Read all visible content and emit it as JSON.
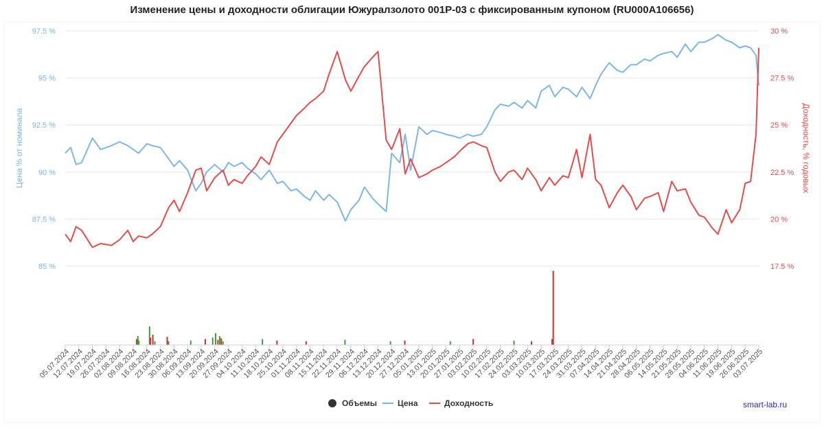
{
  "chart_data": {
    "type": "line",
    "title": "Изменение цены и доходности облигации Южуралзолото 001Р-03 с фиксированным купоном (RU000A106656)",
    "credit": "smart-lab.ru",
    "y_left_label": "Цена % от номинала",
    "y_right_label": "Доходность, % годовых",
    "y_left_ticks": [
      "85 %",
      "87.5 %",
      "90 %",
      "92.5 %",
      "95 %",
      "97.5 %"
    ],
    "y_right_ticks": [
      "17.5 %",
      "20 %",
      "22.5 %",
      "25 %",
      "27.5 %",
      "30 %"
    ],
    "ylim_left": [
      85,
      97.5
    ],
    "ylim_right": [
      17.5,
      30
    ],
    "x_tick_labels": [
      "05.07.2024",
      "12.07.2024",
      "19.07.2024",
      "26.07.2024",
      "02.08.2024",
      "09.08.2024",
      "16.08.2024",
      "23.08.2024",
      "30.08.2024",
      "06.09.2024",
      "13.09.2024",
      "20.09.2024",
      "27.09.2024",
      "04.10.2024",
      "11.10.2024",
      "18.10.2024",
      "25.10.2024",
      "01.11.2024",
      "08.11.2024",
      "15.11.2024",
      "22.11.2024",
      "29.11.2024",
      "06.12.2024",
      "13.12.2024",
      "20.12.2024",
      "27.12.2024",
      "05.01.2025",
      "13.01.2025",
      "20.01.2025",
      "27.01.2025",
      "03.02.2025",
      "10.02.2025",
      "17.02.2025",
      "24.02.2025",
      "03.03.2025",
      "10.03.2025",
      "17.03.2025",
      "24.03.2025",
      "31.03.2025",
      "07.04.2025",
      "14.04.2025",
      "21.04.2025",
      "28.04.2025",
      "06.05.2025",
      "14.05.2025",
      "21.05.2025",
      "28.05.2025",
      "04.06.2025",
      "11.06.2025",
      "19.06.2025",
      "26.06.2025",
      "03.07.2025"
    ],
    "legend": [
      {
        "name": "Объемы",
        "color": "#333333",
        "symbol": "circle"
      },
      {
        "name": "Цена",
        "color": "#7cb5ec",
        "symbol": "line"
      },
      {
        "name": "Доходность",
        "color": "#e84a4a",
        "symbol": "line"
      }
    ],
    "colors": {
      "price": "#7cb5ec",
      "yield": "#e84a4a",
      "volume_up": "#3aa03a",
      "volume_down": "#d62c2c",
      "grid": "#e6e6e6",
      "left_axis": "#7cb5ec",
      "right_axis": "#e84a4a"
    },
    "series": [
      {
        "name": "Цена",
        "axis": "left",
        "x": [
          0,
          0.4,
          0.8,
          1.2,
          2,
          2.6,
          3.4,
          4,
          4.6,
          5,
          5.4,
          6,
          6.4,
          7,
          7.6,
          8,
          8.4,
          9,
          9.6,
          10,
          10.4,
          11,
          11.6,
          12,
          12.4,
          13,
          13.4,
          14,
          14.4,
          15,
          15.6,
          16,
          16.6,
          17,
          17.6,
          18,
          18.4,
          19,
          19.4,
          20,
          20.6,
          21,
          21.6,
          22,
          22.6,
          23,
          23.6,
          24,
          24.6,
          25,
          25.4,
          26,
          26.6,
          27,
          27.6,
          28,
          28.6,
          29,
          29.6,
          30,
          30.6,
          31,
          31.6,
          32,
          32.6,
          33,
          33.6,
          34,
          34.6,
          35,
          35.6,
          36,
          36.6,
          37,
          37.6,
          38,
          38.6,
          39,
          39.4,
          40,
          40.6,
          41,
          41.6,
          42,
          42.6,
          43,
          43.6,
          44,
          44.6,
          45,
          45.6,
          46,
          46.6,
          47,
          47.6,
          48,
          48.6,
          49,
          49.6,
          50,
          50.4,
          50.8,
          51
        ],
        "values": [
          91.0,
          91.3,
          90.4,
          90.5,
          91.8,
          91.2,
          91.4,
          91.6,
          91.4,
          91.2,
          91.0,
          91.5,
          91.4,
          91.3,
          90.7,
          90.3,
          90.6,
          90.1,
          89.0,
          89.4,
          90.0,
          90.4,
          90.0,
          90.5,
          90.3,
          90.5,
          90.2,
          89.9,
          89.6,
          90.1,
          89.4,
          89.5,
          89.0,
          89.1,
          88.7,
          88.5,
          89.0,
          88.5,
          88.8,
          88.4,
          87.4,
          88.0,
          88.5,
          89.2,
          88.6,
          88.3,
          87.9,
          91.0,
          90.5,
          92.0,
          90.1,
          92.4,
          92.0,
          92.2,
          92.1,
          92.0,
          91.9,
          91.8,
          92.0,
          91.9,
          92.0,
          92.4,
          93.3,
          93.6,
          93.5,
          93.7,
          93.4,
          93.8,
          93.4,
          94.3,
          94.6,
          94.0,
          94.5,
          94.4,
          94.0,
          94.5,
          93.9,
          94.6,
          95.2,
          95.8,
          95.4,
          95.3,
          95.7,
          95.7,
          96.0,
          95.9,
          96.2,
          96.3,
          96.4,
          96.1,
          96.8,
          96.4,
          96.9,
          96.9,
          97.1,
          97.3,
          97.0,
          96.9,
          96.6,
          96.7,
          96.6,
          96.2,
          94.6
        ]
      },
      {
        "name": "Доходность",
        "axis": "right",
        "x": [
          0,
          0.4,
          0.8,
          1.2,
          2,
          2.6,
          3.4,
          4,
          4.6,
          5,
          5.4,
          6,
          6.4,
          7,
          7.6,
          8,
          8.4,
          9,
          9.6,
          10,
          10.4,
          11,
          11.6,
          12,
          12.4,
          13,
          13.4,
          14,
          14.4,
          15,
          15.6,
          16,
          16.6,
          17,
          17.6,
          18,
          18.4,
          19,
          19.4,
          20,
          20.6,
          21,
          21.6,
          22,
          22.6,
          23,
          23.6,
          24,
          24.6,
          25,
          25.4,
          26,
          26.6,
          27,
          27.6,
          28,
          28.6,
          29,
          29.6,
          30,
          30.6,
          31,
          31.6,
          32,
          32.6,
          33,
          33.6,
          34,
          34.6,
          35,
          35.6,
          36,
          36.6,
          37,
          37.6,
          38,
          38.6,
          39,
          39.4,
          40,
          40.6,
          41,
          41.6,
          42,
          42.6,
          43,
          43.6,
          44,
          44.6,
          45,
          45.6,
          46,
          46.6,
          47,
          47.6,
          48,
          48.6,
          49,
          49.6,
          50,
          50.4,
          50.8,
          51
        ],
        "values": [
          19.2,
          18.8,
          19.6,
          19.4,
          18.5,
          18.7,
          18.6,
          18.9,
          19.4,
          18.8,
          19.1,
          19.0,
          19.2,
          19.6,
          20.6,
          21.0,
          20.4,
          21.4,
          22.6,
          22.7,
          21.5,
          22.2,
          22.6,
          21.8,
          22.1,
          21.9,
          22.3,
          22.8,
          23.3,
          22.9,
          24.1,
          24.5,
          25.1,
          25.5,
          25.9,
          26.2,
          26.4,
          26.8,
          27.7,
          28.9,
          27.4,
          26.8,
          27.6,
          28.1,
          28.6,
          28.9,
          24.2,
          23.7,
          24.8,
          22.4,
          23.2,
          22.2,
          22.4,
          22.6,
          22.8,
          23.0,
          23.3,
          23.6,
          24.0,
          24.1,
          23.9,
          23.8,
          22.5,
          22.0,
          22.5,
          22.6,
          22.1,
          22.7,
          22.1,
          21.5,
          22.2,
          21.8,
          22.3,
          22.2,
          23.7,
          22.2,
          24.5,
          22.1,
          21.8,
          20.6,
          21.4,
          21.8,
          21.2,
          20.5,
          21.1,
          21.2,
          21.4,
          20.4,
          22.0,
          21.5,
          21.6,
          20.9,
          20.2,
          20.1,
          19.5,
          19.2,
          20.5,
          19.8,
          20.5,
          21.9,
          22.0,
          24.5,
          29.1
        ]
      }
    ],
    "volumes": [
      {
        "x": 36.8,
        "v": 0.08,
        "dir": "down"
      },
      {
        "x": 37.4,
        "v": 0.12,
        "dir": "up"
      },
      {
        "x": 37.9,
        "v": 0.06,
        "dir": "up"
      },
      {
        "x": 43.4,
        "v": 0.25,
        "dir": "up"
      },
      {
        "x": 43.9,
        "v": 0.1,
        "dir": "down"
      },
      {
        "x": 45.1,
        "v": 0.14,
        "dir": "down"
      },
      {
        "x": 46.1,
        "v": 0.05,
        "dir": "up"
      },
      {
        "x": 52.5,
        "v": 0.11,
        "dir": "down"
      },
      {
        "x": 53.2,
        "v": 0.05,
        "dir": "up"
      },
      {
        "x": 64.6,
        "v": 0.06,
        "dir": "up"
      },
      {
        "x": 72.1,
        "v": 0.08,
        "dir": "down"
      },
      {
        "x": 75.9,
        "v": 0.1,
        "dir": "up"
      },
      {
        "x": 77.4,
        "v": 0.16,
        "dir": "up"
      },
      {
        "x": 78.6,
        "v": 0.07,
        "dir": "down"
      },
      {
        "x": 79.5,
        "v": 0.12,
        "dir": "up"
      },
      {
        "x": 80.3,
        "v": 0.09,
        "dir": "down"
      },
      {
        "x": 81.2,
        "v": 0.05,
        "dir": "up"
      },
      {
        "x": 101.5,
        "v": 0.08,
        "dir": "up"
      },
      {
        "x": 109.0,
        "v": 0.06,
        "dir": "down"
      },
      {
        "x": 124.0,
        "v": 0.05,
        "dir": "down"
      },
      {
        "x": 144.0,
        "v": 0.07,
        "dir": "up"
      },
      {
        "x": 167.4,
        "v": 0.05,
        "dir": "up"
      },
      {
        "x": 174.8,
        "v": 0.06,
        "dir": "down"
      },
      {
        "x": 198.2,
        "v": 0.05,
        "dir": "up"
      },
      {
        "x": 210.0,
        "v": 0.08,
        "dir": "down"
      },
      {
        "x": 231.0,
        "v": 0.06,
        "dir": "up"
      },
      {
        "x": 240.0,
        "v": 0.05,
        "dir": "down"
      },
      {
        "x": 250.6,
        "v": 0.08,
        "dir": "down"
      },
      {
        "x": 251.2,
        "v": 1.0,
        "dir": "down"
      }
    ]
  }
}
